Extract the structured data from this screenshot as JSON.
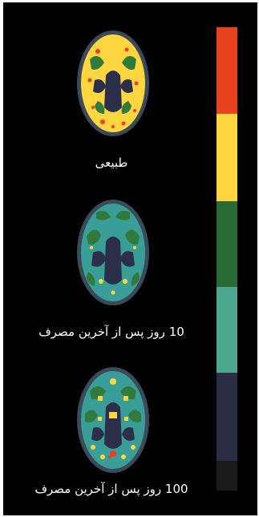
{
  "scans": [
    {
      "caption": "طبیعی",
      "colors": {
        "outline": "#3b4a5a",
        "base": "#ffd540",
        "mid": "#2f7a3c",
        "dark": "#2b2f4a",
        "hot": "#e8402a",
        "cool": "#4ea894"
      }
    },
    {
      "caption": "10 روز پس از آخرین مصرف",
      "colors": {
        "outline": "#3b4a5a",
        "base": "#3a9e98",
        "mid": "#2f7a3c",
        "dark": "#2b2f4a",
        "hot": "#ffd540",
        "cool": "#4ea894"
      }
    },
    {
      "caption": "100 روز پس از آخرین مصرف",
      "colors": {
        "outline": "#3b4a5a",
        "base": "#3a9e98",
        "mid": "#2f7a3c",
        "dark": "#2b2f4a",
        "hot": "#ffd540",
        "cool": "#e8402a"
      }
    }
  ],
  "color_scale": [
    {
      "color": "#e8421e"
    },
    {
      "color": "#ffd540"
    },
    {
      "color": "#2a6a34"
    },
    {
      "color": "#4ea890"
    },
    {
      "color": "#2b2d45"
    },
    {
      "color": "#1a1a1a"
    }
  ]
}
